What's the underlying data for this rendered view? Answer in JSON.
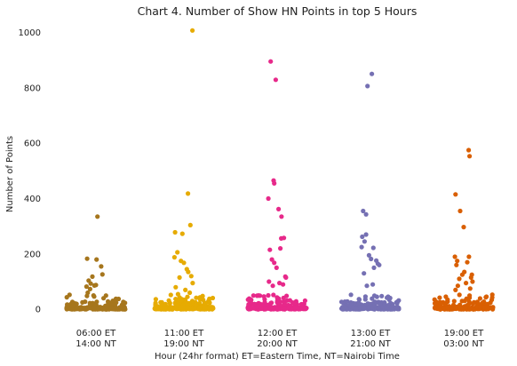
{
  "chart_data": {
    "type": "scatter",
    "title": "Chart 4. Number of Show HN Points in top 5 Hours",
    "xlabel": "Hour (24hr format) ET=Eastern Time,  NT=Nairobi Time",
    "ylabel": "Number of Points",
    "ylim": [
      -25,
      1040
    ],
    "yticks": [
      0,
      200,
      400,
      600,
      800,
      1000
    ],
    "grid": false,
    "legend": "none",
    "categories": [
      {
        "line1": "06:00 ET",
        "line2": "14:00 NT"
      },
      {
        "line1": "11:00 ET",
        "line2": "19:00 NT"
      },
      {
        "line1": "12:00 ET",
        "line2": "20:00 NT"
      },
      {
        "line1": "13:00 ET",
        "line2": "21:00 NT"
      },
      {
        "line1": "19:00 ET",
        "line2": "03:00 NT"
      }
    ],
    "colors": [
      "#a6761d",
      "#e6ab02",
      "#e7298a",
      "#7570b3",
      "#d95f02"
    ],
    "series": [
      {
        "outliers": [
          [
            0.05,
            335
          ],
          [
            -0.3,
            183
          ],
          [
            0.02,
            180
          ],
          [
            0.18,
            155
          ],
          [
            0.22,
            126
          ],
          [
            -0.12,
            118
          ],
          [
            -0.25,
            104
          ],
          [
            -0.18,
            93
          ],
          [
            0.0,
            88
          ],
          [
            -0.05,
            86
          ],
          [
            -0.32,
            82
          ],
          [
            -0.2,
            73
          ],
          [
            -0.28,
            60
          ],
          [
            0.26,
            40
          ]
        ]
      },
      {
        "outliers": [
          [
            0.29,
            1007
          ],
          [
            0.14,
            418
          ],
          [
            0.22,
            304
          ],
          [
            -0.3,
            278
          ],
          [
            -0.05,
            273
          ],
          [
            -0.22,
            206
          ],
          [
            -0.32,
            188
          ],
          [
            -0.1,
            175
          ],
          [
            0.0,
            168
          ],
          [
            0.1,
            145
          ],
          [
            0.15,
            135
          ],
          [
            0.25,
            120
          ],
          [
            -0.15,
            115
          ],
          [
            0.3,
            95
          ],
          [
            -0.28,
            80
          ],
          [
            0.05,
            70
          ],
          [
            0.2,
            60
          ],
          [
            -0.2,
            55
          ],
          [
            0.12,
            45
          ]
        ]
      },
      {
        "outliers": [
          [
            -0.22,
            895
          ],
          [
            -0.05,
            829
          ],
          [
            -0.12,
            465
          ],
          [
            -0.1,
            455
          ],
          [
            -0.3,
            400
          ],
          [
            0.05,
            362
          ],
          [
            0.15,
            335
          ],
          [
            0.14,
            256
          ],
          [
            0.23,
            258
          ],
          [
            0.11,
            220
          ],
          [
            -0.25,
            215
          ],
          [
            -0.18,
            180
          ],
          [
            -0.1,
            168
          ],
          [
            -0.02,
            150
          ],
          [
            0.28,
            118
          ],
          [
            0.3,
            115
          ],
          [
            -0.28,
            100
          ],
          [
            0.08,
            95
          ],
          [
            0.2,
            90
          ],
          [
            -0.15,
            85
          ]
        ]
      },
      {
        "outliers": [
          [
            -0.1,
            806
          ],
          [
            0.05,
            850
          ],
          [
            -0.25,
            355
          ],
          [
            -0.15,
            343
          ],
          [
            -0.15,
            270
          ],
          [
            -0.28,
            262
          ],
          [
            -0.2,
            245
          ],
          [
            0.1,
            222
          ],
          [
            -0.3,
            225
          ],
          [
            -0.05,
            195
          ],
          [
            0.02,
            182
          ],
          [
            0.2,
            176
          ],
          [
            0.25,
            165
          ],
          [
            0.3,
            160
          ],
          [
            0.12,
            150
          ],
          [
            -0.22,
            130
          ],
          [
            0.08,
            90
          ],
          [
            -0.12,
            85
          ]
        ]
      },
      {
        "outliers": [
          [
            0.17,
            575
          ],
          [
            0.2,
            553
          ],
          [
            -0.28,
            415
          ],
          [
            -0.12,
            355
          ],
          [
            0.0,
            297
          ],
          [
            -0.3,
            190
          ],
          [
            0.18,
            190
          ],
          [
            -0.22,
            175
          ],
          [
            -0.25,
            160
          ],
          [
            0.12,
            170
          ],
          [
            0.28,
            125
          ],
          [
            0.02,
            135
          ],
          [
            -0.05,
            125
          ],
          [
            -0.15,
            110
          ],
          [
            0.25,
            115
          ],
          [
            0.3,
            100
          ],
          [
            0.08,
            95
          ],
          [
            -0.2,
            85
          ],
          [
            0.22,
            75
          ],
          [
            -0.28,
            70
          ]
        ]
      }
    ]
  }
}
